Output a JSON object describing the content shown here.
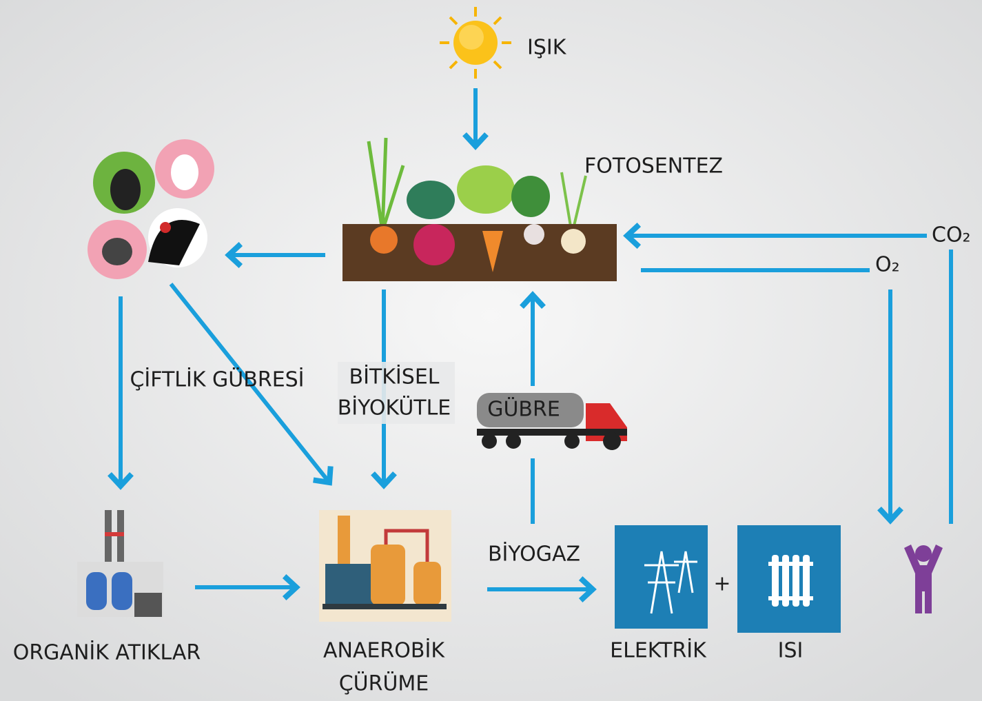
{
  "labels": {
    "light": "IŞIK",
    "photosynthesis": "FOTOSENTEZ",
    "co2": "CO₂",
    "o2": "O₂",
    "farm_manure": "ÇİFTLİK GÜBRESİ",
    "plant_biomass": [
      "BİTKİSEL",
      "BİYOKÜTLE"
    ],
    "fertilizer": "GÜBRE",
    "biogas": "BİYOGAZ",
    "organic_waste": "ORGANİK ATIKLAR",
    "anaerobic_digestion": [
      "ANAEROBİK",
      "ÇÜRÜME"
    ],
    "electricity": "ELEKTRİK",
    "plus": "+",
    "heat": "ISI"
  }
}
